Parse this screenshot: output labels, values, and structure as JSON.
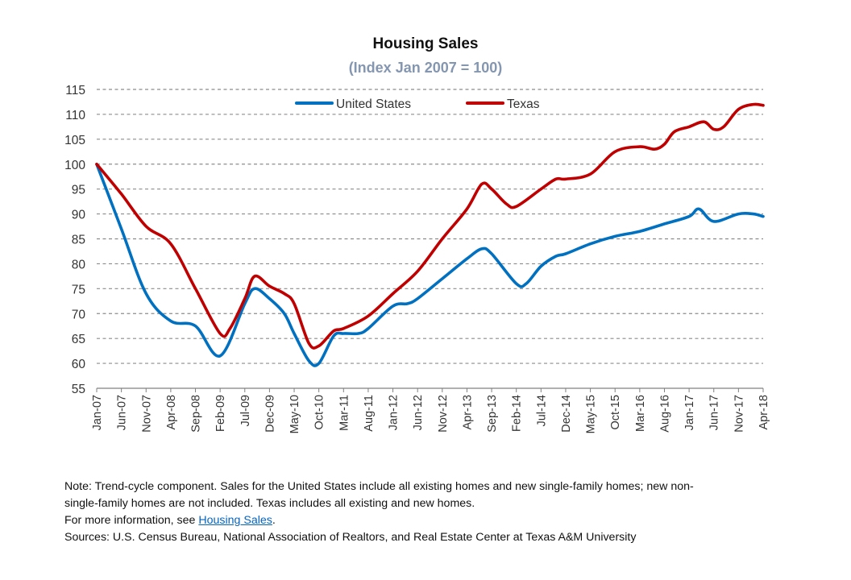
{
  "colors": {
    "us": "#0070c0",
    "tx": "#c00000",
    "subtitle": "#8496b0",
    "grid": "#8c8c8c",
    "axis": "#808080"
  },
  "chart_data": {
    "type": "line",
    "title": "Housing Sales",
    "subtitle": "(Index Jan 2007 = 100)",
    "xlabel": "",
    "ylabel": "",
    "ylim": [
      55,
      115
    ],
    "yticks": [
      55,
      60,
      65,
      70,
      75,
      80,
      85,
      90,
      95,
      100,
      105,
      110,
      115
    ],
    "grid": true,
    "legend_position": "top-center",
    "x_range": [
      "Jan-07",
      "Apr-18"
    ],
    "xtick_labels": [
      "Jan-07",
      "Jun-07",
      "Nov-07",
      "Apr-08",
      "Sep-08",
      "Feb-09",
      "Jul-09",
      "Dec-09",
      "May-10",
      "Oct-10",
      "Mar-11",
      "Aug-11",
      "Jan-12",
      "Jun-12",
      "Nov-12",
      "Apr-13",
      "Sep-13",
      "Feb-14",
      "Jul-14",
      "Dec-14",
      "May-15",
      "Oct-15",
      "Mar-16",
      "Aug-16",
      "Jan-17",
      "Jun-17",
      "Nov-17",
      "Apr-18"
    ],
    "series": [
      {
        "name": "United States",
        "color": "#0070c0",
        "points": [
          [
            "Jan-07",
            100
          ],
          [
            "Jun-07",
            87
          ],
          [
            "Nov-07",
            74
          ],
          [
            "Apr-08",
            68.5
          ],
          [
            "Sep-08",
            67.5
          ],
          [
            "Feb-09",
            61.5
          ],
          [
            "Jul-09",
            72
          ],
          [
            "Sep-09",
            75
          ],
          [
            "Dec-09",
            73
          ],
          [
            "Mar-10",
            70
          ],
          [
            "May-10",
            66
          ],
          [
            "Aug-10",
            60.5
          ],
          [
            "Oct-10",
            60
          ],
          [
            "Jan-11",
            65.5
          ],
          [
            "Mar-11",
            66
          ],
          [
            "Jun-11",
            66
          ],
          [
            "Aug-11",
            67
          ],
          [
            "Jan-12",
            71.5
          ],
          [
            "Apr-12",
            72
          ],
          [
            "Jun-12",
            73
          ],
          [
            "Nov-12",
            77
          ],
          [
            "Apr-13",
            81
          ],
          [
            "Jul-13",
            83
          ],
          [
            "Sep-13",
            82
          ],
          [
            "Feb-14",
            76
          ],
          [
            "Apr-14",
            76
          ],
          [
            "Jul-14",
            79.5
          ],
          [
            "Oct-14",
            81.5
          ],
          [
            "Dec-14",
            82
          ],
          [
            "May-15",
            84
          ],
          [
            "Oct-15",
            85.5
          ],
          [
            "Mar-16",
            86.5
          ],
          [
            "Aug-16",
            88
          ],
          [
            "Jan-17",
            89.5
          ],
          [
            "Mar-17",
            91
          ],
          [
            "Jun-17",
            88.5
          ],
          [
            "Nov-17",
            90
          ],
          [
            "Feb-18",
            90
          ],
          [
            "Apr-18",
            89.5
          ]
        ]
      },
      {
        "name": "Texas",
        "color": "#c00000",
        "points": [
          [
            "Jan-07",
            100
          ],
          [
            "Jun-07",
            94
          ],
          [
            "Nov-07",
            87.5
          ],
          [
            "Apr-08",
            84
          ],
          [
            "Sep-08",
            75
          ],
          [
            "Feb-09",
            66
          ],
          [
            "Apr-09",
            67
          ],
          [
            "Jul-09",
            73
          ],
          [
            "Sep-09",
            77.5
          ],
          [
            "Dec-09",
            75.5
          ],
          [
            "Mar-10",
            74
          ],
          [
            "May-10",
            72
          ],
          [
            "Aug-10",
            64
          ],
          [
            "Oct-10",
            63.5
          ],
          [
            "Jan-11",
            66.5
          ],
          [
            "Mar-11",
            67
          ],
          [
            "Aug-11",
            69.5
          ],
          [
            "Jan-12",
            74
          ],
          [
            "Jun-12",
            78.5
          ],
          [
            "Nov-12",
            85
          ],
          [
            "Apr-13",
            91
          ],
          [
            "Jul-13",
            96
          ],
          [
            "Sep-13",
            95
          ],
          [
            "Dec-13",
            92
          ],
          [
            "Feb-14",
            91.5
          ],
          [
            "Jul-14",
            95
          ],
          [
            "Oct-14",
            97
          ],
          [
            "Dec-14",
            97
          ],
          [
            "May-15",
            98
          ],
          [
            "Oct-15",
            102.5
          ],
          [
            "Mar-16",
            103.5
          ],
          [
            "Jun-16",
            103
          ],
          [
            "Aug-16",
            104
          ],
          [
            "Oct-16",
            106.5
          ],
          [
            "Jan-17",
            107.5
          ],
          [
            "Apr-17",
            108.5
          ],
          [
            "Jun-17",
            107
          ],
          [
            "Aug-17",
            107.5
          ],
          [
            "Nov-17",
            111
          ],
          [
            "Feb-18",
            112
          ],
          [
            "Apr-18",
            111.8
          ]
        ]
      }
    ]
  },
  "notes": {
    "line1": "Note: Trend-cycle component. Sales for the United States include all existing homes and new single-family homes; new non-",
    "line2": "single-family homes are not included. Texas includes all existing and new homes.",
    "line3_prefix": "For more information, see ",
    "line3_link": "Housing Sales",
    "line3_suffix": ".",
    "line4": "Sources: U.S. Census Bureau, National Association of Realtors, and Real Estate Center at Texas A&M University"
  }
}
